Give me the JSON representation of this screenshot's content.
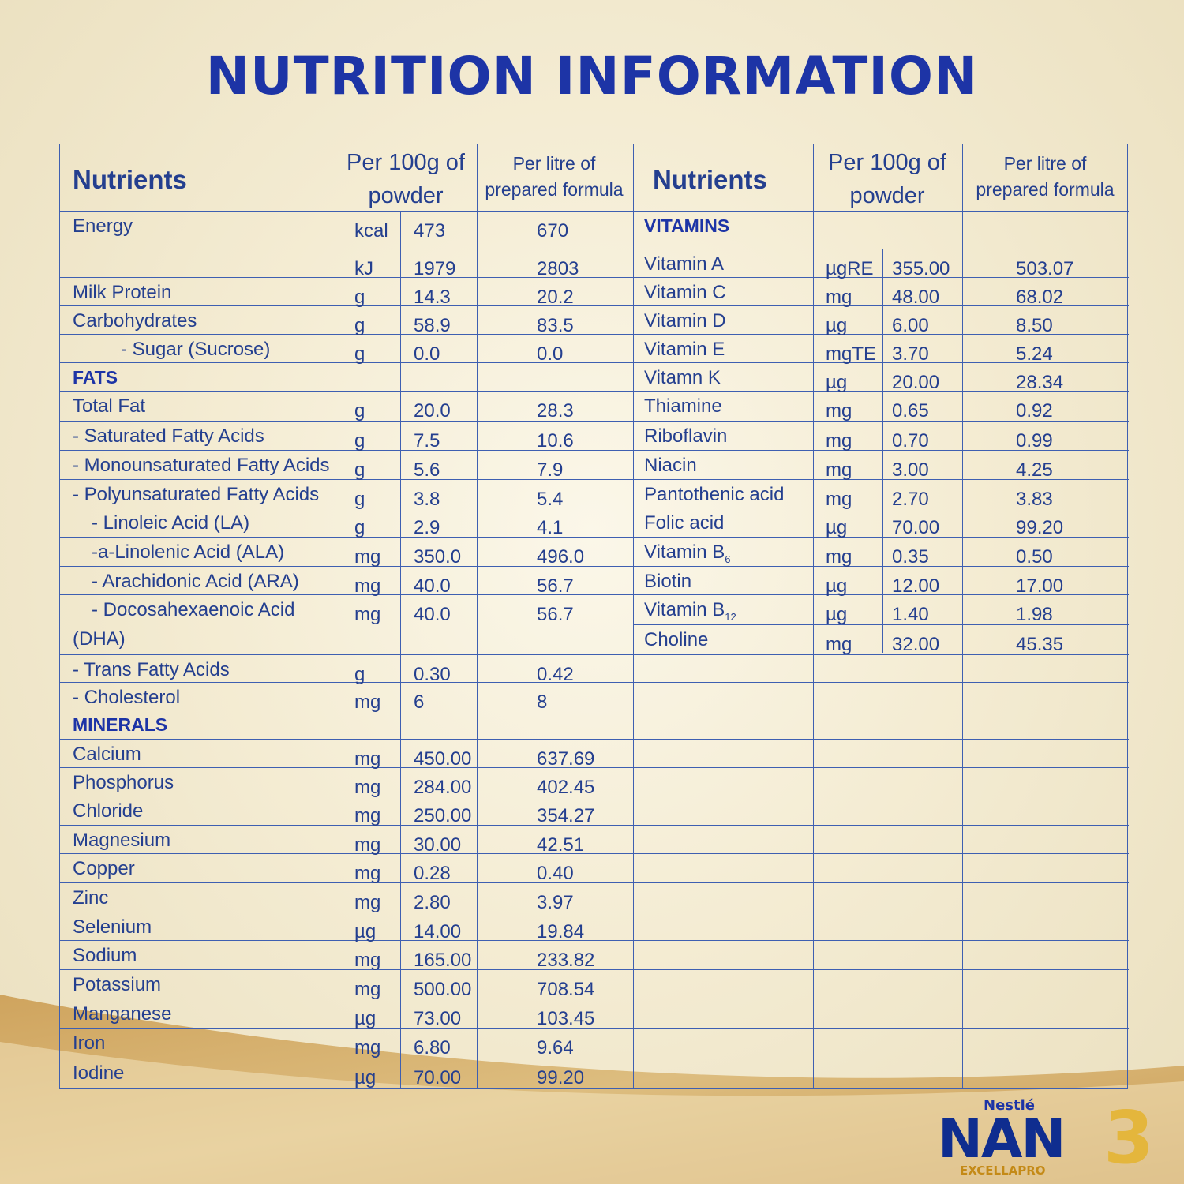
{
  "title": "NUTRITION INFORMATION",
  "header": {
    "nutrients": "Nutrients",
    "per100_l1": "Per 100g of",
    "per100_l2": "powder",
    "perlitre_l1": "Per litre of",
    "perlitre_l2": "prepared formula"
  },
  "left_rows": [
    {
      "name": "Energy",
      "unit": "kcal",
      "per100": "473",
      "perlitre": "670"
    },
    {
      "name": "",
      "unit": "kJ",
      "per100": "1979",
      "perlitre": "2803"
    },
    {
      "name": "Milk Protein",
      "unit": "g",
      "per100": "14.3",
      "perlitre": "20.2"
    },
    {
      "name": "Carbohydrates",
      "unit": "g",
      "per100": "58.9",
      "perlitre": "83.5"
    },
    {
      "name": "- Sugar (Sucrose)",
      "unit": "g",
      "per100": "0.0",
      "perlitre": "0.0"
    },
    {
      "name": "FATS",
      "unit": "",
      "per100": "",
      "perlitre": ""
    },
    {
      "name": "Total Fat",
      "unit": "g",
      "per100": "20.0",
      "perlitre": "28.3"
    },
    {
      "name": "- Saturated Fatty Acids",
      "unit": "g",
      "per100": "7.5",
      "perlitre": "10.6"
    },
    {
      "name": "- Monounsaturated Fatty Acids",
      "unit": "g",
      "per100": "5.6",
      "perlitre": "7.9"
    },
    {
      "name": "- Polyunsaturated Fatty Acids",
      "unit": "g",
      "per100": "3.8",
      "perlitre": "5.4"
    },
    {
      "name": "- Linoleic Acid (LA)",
      "unit": "g",
      "per100": "2.9",
      "perlitre": "4.1"
    },
    {
      "name": "-a-Linolenic Acid (ALA)",
      "unit": "mg",
      "per100": "350.0",
      "perlitre": "496.0"
    },
    {
      "name": "- Arachidonic Acid (ARA)",
      "unit": "mg",
      "per100": "40.0",
      "perlitre": "56.7"
    },
    {
      "name": "- Docosahexaenoic Acid",
      "name2": "(DHA)",
      "unit": "mg",
      "per100": "40.0",
      "perlitre": "56.7"
    },
    {
      "name": "- Trans Fatty Acids",
      "unit": "g",
      "per100": "0.30",
      "perlitre": "0.42"
    },
    {
      "name": "- Cholesterol",
      "unit": "mg",
      "per100": "6",
      "perlitre": "8"
    },
    {
      "name": "MINERALS",
      "unit": "",
      "per100": "",
      "perlitre": ""
    },
    {
      "name": "Calcium",
      "unit": "mg",
      "per100": "450.00",
      "perlitre": "637.69"
    },
    {
      "name": "Phosphorus",
      "unit": "mg",
      "per100": "284.00",
      "perlitre": "402.45"
    },
    {
      "name": "Chloride",
      "unit": "mg",
      "per100": "250.00",
      "perlitre": "354.27"
    },
    {
      "name": "Magnesium",
      "unit": "mg",
      "per100": "30.00",
      "perlitre": "42.51"
    },
    {
      "name": "Copper",
      "unit": "mg",
      "per100": "0.28",
      "perlitre": "0.40"
    },
    {
      "name": "Zinc",
      "unit": "mg",
      "per100": "2.80",
      "perlitre": "3.97"
    },
    {
      "name": "Selenium",
      "unit": "µg",
      "per100": "14.00",
      "perlitre": "19.84"
    },
    {
      "name": "Sodium",
      "unit": "mg",
      "per100": "165.00",
      "perlitre": "233.82"
    },
    {
      "name": "Potassium",
      "unit": "mg",
      "per100": "500.00",
      "perlitre": "708.54"
    },
    {
      "name": "Manganese",
      "unit": "µg",
      "per100": "73.00",
      "perlitre": "103.45"
    },
    {
      "name": "Iron",
      "unit": "mg",
      "per100": "6.80",
      "perlitre": "9.64"
    },
    {
      "name": "Iodine",
      "unit": "µg",
      "per100": "70.00",
      "perlitre": "99.20"
    }
  ],
  "right_rows": [
    {
      "name": "VITAMINS",
      "unit": "",
      "per100": "",
      "perlitre": ""
    },
    {
      "name": "Vitamin A",
      "unit": "µgRE",
      "per100": "355.00",
      "perlitre": "503.07"
    },
    {
      "name": "Vitamin C",
      "unit": "mg",
      "per100": "48.00",
      "perlitre": "68.02"
    },
    {
      "name": "Vitamin D",
      "unit": "µg",
      "per100": "6.00",
      "perlitre": "8.50"
    },
    {
      "name": "Vitamin E",
      "unit": "mgTE",
      "per100": "3.70",
      "perlitre": "5.24"
    },
    {
      "name": "Vitamn K",
      "unit": "µg",
      "per100": "20.00",
      "perlitre": "28.34"
    },
    {
      "name": "Thiamine",
      "unit": "mg",
      "per100": "0.65",
      "perlitre": "0.92"
    },
    {
      "name": "Riboflavin",
      "unit": "mg",
      "per100": "0.70",
      "perlitre": "0.99"
    },
    {
      "name": "Niacin",
      "unit": "mg",
      "per100": "3.00",
      "perlitre": "4.25"
    },
    {
      "name": "Pantothenic acid",
      "unit": "mg",
      "per100": "2.70",
      "perlitre": "3.83"
    },
    {
      "name": "Folic acid",
      "unit": "µg",
      "per100": "70.00",
      "perlitre": "99.20"
    },
    {
      "name": "Vitamin B",
      "sub": "6",
      "unit": "mg",
      "per100": "0.35",
      "perlitre": "0.50"
    },
    {
      "name": "Biotin",
      "unit": "µg",
      "per100": "12.00",
      "perlitre": "17.00"
    },
    {
      "name": "Vitamin B",
      "sub": "12",
      "unit": "µg",
      "per100": "1.40",
      "perlitre": "1.98"
    },
    {
      "name": "Choline",
      "unit": "mg",
      "per100": "32.00",
      "perlitre": "45.35"
    }
  ],
  "logo": {
    "brand": "Nestlé",
    "product": "NAN",
    "sub": "EXCELLAPRO",
    "stage": "3"
  },
  "colors": {
    "title": "#1d34a6",
    "text": "#243f8f",
    "grid": "#3e5fb1",
    "gold": "#e4b63c"
  }
}
